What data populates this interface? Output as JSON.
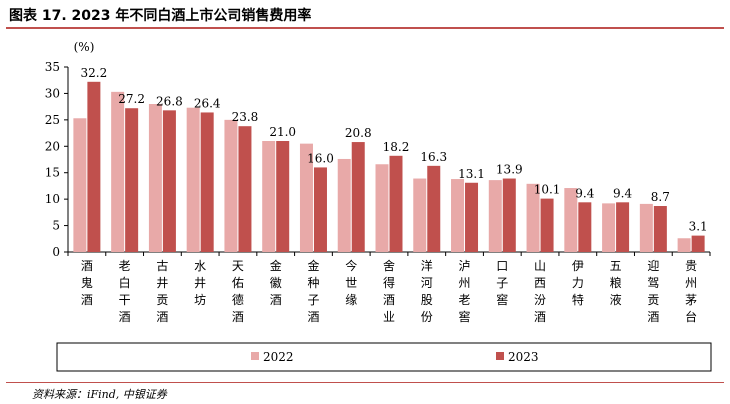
{
  "header": {
    "title": "图表 17. 2023 年不同白酒上市公司销售费用率"
  },
  "footer": {
    "source": "资料来源：iFind, 中银证券"
  },
  "chart_data": {
    "type": "bar",
    "unit_label": "(%)",
    "ylim": [
      0,
      35
    ],
    "yticks": [
      0,
      5,
      10,
      15,
      20,
      25,
      30,
      35
    ],
    "legend_position": "bottom",
    "categories": [
      "酒鬼酒",
      "老白干酒",
      "古井贡酒",
      "水井坊",
      "天佑德酒",
      "金徽酒",
      "金种子酒",
      "今世缘",
      "舍得酒业",
      "洋河股份",
      "泸州老窖",
      "口子窖",
      "山西汾酒",
      "伊力特",
      "五粮液",
      "迎驾贡酒",
      "贵州茅台"
    ],
    "series": [
      {
        "name": "2022",
        "color": "#e8a9a8",
        "values": [
          25.3,
          30.3,
          28.0,
          27.3,
          25.0,
          21.0,
          20.5,
          17.6,
          16.6,
          13.9,
          13.8,
          13.6,
          12.9,
          12.1,
          9.2,
          9.1,
          2.6
        ],
        "labels": []
      },
      {
        "name": "2023",
        "color": "#c0504d",
        "values": [
          32.2,
          27.2,
          26.8,
          26.4,
          23.8,
          21.0,
          16.0,
          20.8,
          18.2,
          16.3,
          13.1,
          13.9,
          10.1,
          9.4,
          9.4,
          8.7,
          3.1
        ],
        "labels": [
          "32.2",
          "27.2",
          "26.8",
          "26.4",
          "23.8",
          "21.0",
          "16.0",
          "20.8",
          "18.2",
          "16.3",
          "13.1",
          "13.9",
          "10.1",
          "9.4",
          "9.4",
          "8.7",
          "3.1"
        ]
      }
    ]
  }
}
